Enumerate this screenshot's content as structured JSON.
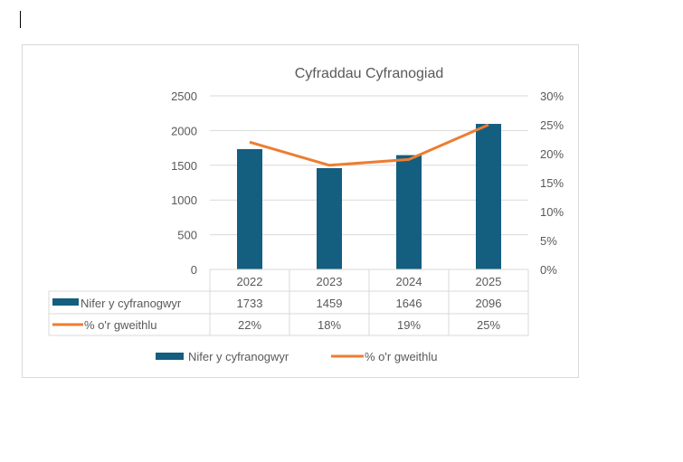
{
  "chart_data": {
    "type": "bar",
    "title": "Cyfraddau Cyfranogiad",
    "categories": [
      "2022",
      "2023",
      "2024",
      "2025"
    ],
    "series": [
      {
        "name": "Nifer y cyfranogwyr",
        "type": "bar",
        "axis": "left",
        "values": [
          1733,
          1459,
          1646,
          2096
        ],
        "labels": [
          "1733",
          "1459",
          "1646",
          "2096"
        ],
        "color": "#145e7f"
      },
      {
        "name": "% o'r gweithlu",
        "type": "line",
        "axis": "right",
        "values": [
          22,
          18,
          19,
          25
        ],
        "labels": [
          "22%",
          "18%",
          "19%",
          "25%"
        ],
        "color": "#ed7d31"
      }
    ],
    "y_left": {
      "min": 0,
      "max": 2500,
      "ticks": [
        "0",
        "500",
        "1000",
        "1500",
        "2000",
        "2500"
      ]
    },
    "y_right": {
      "min": 0,
      "max": 30,
      "ticks": [
        "0%",
        "5%",
        "10%",
        "15%",
        "20%",
        "25%",
        "30%"
      ]
    },
    "grid": true,
    "legend": "bottom",
    "data_table": true
  }
}
